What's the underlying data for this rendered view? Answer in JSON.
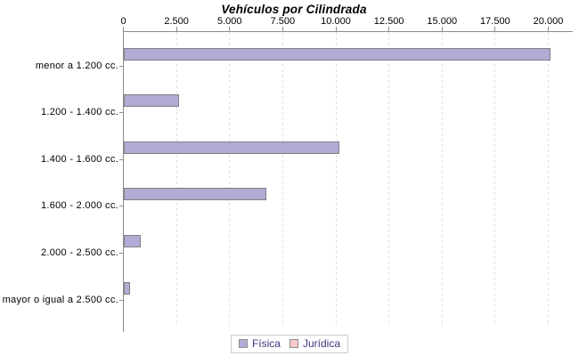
{
  "chart_data": {
    "type": "bar",
    "orientation": "horizontal",
    "title": "Vehículos por Cilindrada",
    "categories": [
      "menor a 1.200 cc.",
      "1.200 - 1.400 cc.",
      "1.400 - 1.600 cc.",
      "1.600 - 2.000 cc.",
      "2.000 - 2.500 cc.",
      "mayor o igual a 2.500 cc."
    ],
    "series": [
      {
        "name": "Física",
        "color": "#b4aad6",
        "border_color": "#7f7f7f",
        "values": [
          20100,
          2600,
          10150,
          6700,
          780,
          310
        ]
      },
      {
        "name": "Jurídica",
        "color": "#f8caca",
        "border_color": "#999999",
        "values": [
          0,
          0,
          0,
          0,
          0,
          0
        ]
      }
    ],
    "x_axis": {
      "min": 0,
      "max": 20000,
      "tick_interval": 2500,
      "tick_labels": [
        "0",
        "2.500",
        "5.000",
        "7.500",
        "10.000",
        "12.500",
        "15.000",
        "17.500",
        "20.000"
      ]
    },
    "grid": "vertical-dashed",
    "legend_position": "bottom",
    "legend_entries": [
      "Física",
      "Jurídica"
    ]
  },
  "colors": {
    "background": "#ffffff",
    "axis": "#8c8c8c",
    "gridline": "#e2dede",
    "title_text": "#000000",
    "label_text": "#000000",
    "legend_text": "#40357e",
    "legend_border": "#cccccc",
    "fisica_fill": "#b4aad6",
    "juridica_fill": "#f8caca"
  }
}
